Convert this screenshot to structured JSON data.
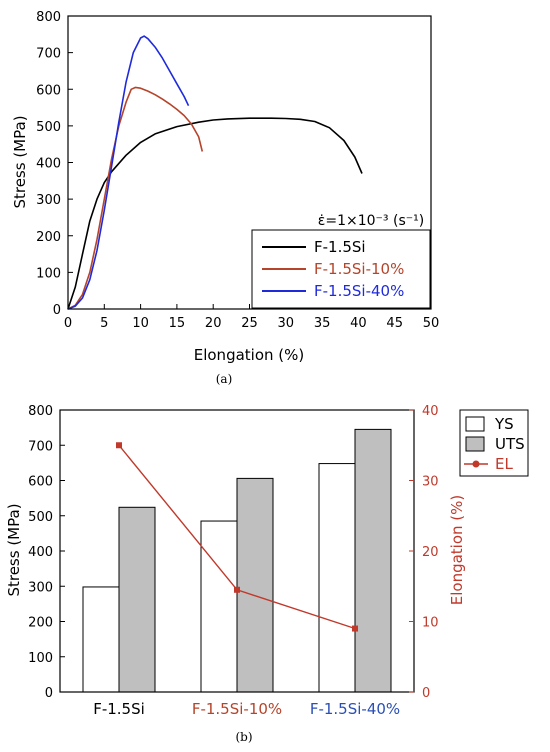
{
  "chart_data": [
    {
      "type": "line",
      "caption": "(a)",
      "xlabel": "Elongation (%)",
      "ylabel": "Stress (MPa)",
      "xlim": [
        0,
        50
      ],
      "ylim": [
        0,
        800
      ],
      "xticks": [
        0,
        5,
        10,
        15,
        20,
        25,
        30,
        35,
        40,
        45,
        50
      ],
      "yticks": [
        0,
        100,
        200,
        300,
        400,
        500,
        600,
        700,
        800
      ],
      "grid": false,
      "legend_position": "bottom-right",
      "legend_title": "ε̇=1×10⁻³ (s⁻¹)",
      "series": [
        {
          "name": "F-1.5Si",
          "color": "#000000",
          "points": [
            [
              0,
              0
            ],
            [
              1,
              60
            ],
            [
              2,
              150
            ],
            [
              3,
              240
            ],
            [
              4,
              300
            ],
            [
              5,
              345
            ],
            [
              6,
              375
            ],
            [
              8,
              420
            ],
            [
              10,
              455
            ],
            [
              12,
              478
            ],
            [
              15,
              498
            ],
            [
              18,
              510
            ],
            [
              20,
              516
            ],
            [
              22,
              519
            ],
            [
              25,
              521
            ],
            [
              28,
              521
            ],
            [
              30,
              520
            ],
            [
              32,
              518
            ],
            [
              34,
              512
            ],
            [
              36,
              495
            ],
            [
              38,
              460
            ],
            [
              39.5,
              415
            ],
            [
              40.5,
              370
            ]
          ]
        },
        {
          "name": "F-1.5Si-10%",
          "color": "#b5442a",
          "points": [
            [
              0,
              0
            ],
            [
              1,
              10
            ],
            [
              2,
              40
            ],
            [
              3,
              100
            ],
            [
              4,
              190
            ],
            [
              5,
              300
            ],
            [
              6,
              410
            ],
            [
              7,
              500
            ],
            [
              8,
              565
            ],
            [
              8.7,
              600
            ],
            [
              9.3,
              605
            ],
            [
              10,
              603
            ],
            [
              11,
              595
            ],
            [
              12,
              585
            ],
            [
              13,
              573
            ],
            [
              14,
              560
            ],
            [
              15,
              545
            ],
            [
              16,
              528
            ],
            [
              17,
              505
            ],
            [
              18,
              470
            ],
            [
              18.5,
              430
            ]
          ]
        },
        {
          "name": "F-1.5Si-40%",
          "color": "#1f2bdb",
          "points": [
            [
              0,
              0
            ],
            [
              1,
              8
            ],
            [
              2,
              30
            ],
            [
              3,
              80
            ],
            [
              4,
              160
            ],
            [
              5,
              270
            ],
            [
              6,
              390
            ],
            [
              7,
              510
            ],
            [
              8,
              620
            ],
            [
              9,
              700
            ],
            [
              10,
              740
            ],
            [
              10.5,
              745
            ],
            [
              11,
              738
            ],
            [
              12,
              715
            ],
            [
              13,
              685
            ],
            [
              14,
              650
            ],
            [
              15,
              615
            ],
            [
              16,
              580
            ],
            [
              16.6,
              555
            ]
          ]
        }
      ]
    },
    {
      "type": "bar",
      "caption": "(b)",
      "categories": [
        "F-1.5Si",
        "F-1.5Si-10%",
        "F-1.5Si-40%"
      ],
      "category_colors": [
        "#000000",
        "#b5442a",
        "#2b4fb5"
      ],
      "ylabel": "Stress (MPa)",
      "y2label": "Elongation (%)",
      "ylim": [
        0,
        800
      ],
      "y2lim": [
        0,
        40
      ],
      "yticks": [
        0,
        100,
        200,
        300,
        400,
        500,
        600,
        700,
        800
      ],
      "y2ticks": [
        0,
        10,
        20,
        30,
        40
      ],
      "grid": false,
      "legend_position": "outside-right",
      "series": [
        {
          "name": "YS",
          "axis": "left",
          "color": "#ffffff",
          "values": [
            298,
            485,
            648
          ]
        },
        {
          "name": "UTS",
          "axis": "left",
          "color": "#bfbfbf",
          "values": [
            524,
            606,
            745
          ]
        },
        {
          "name": "EL",
          "axis": "right",
          "color": "#c0392b",
          "values": [
            35,
            14.5,
            9
          ]
        }
      ]
    }
  ]
}
